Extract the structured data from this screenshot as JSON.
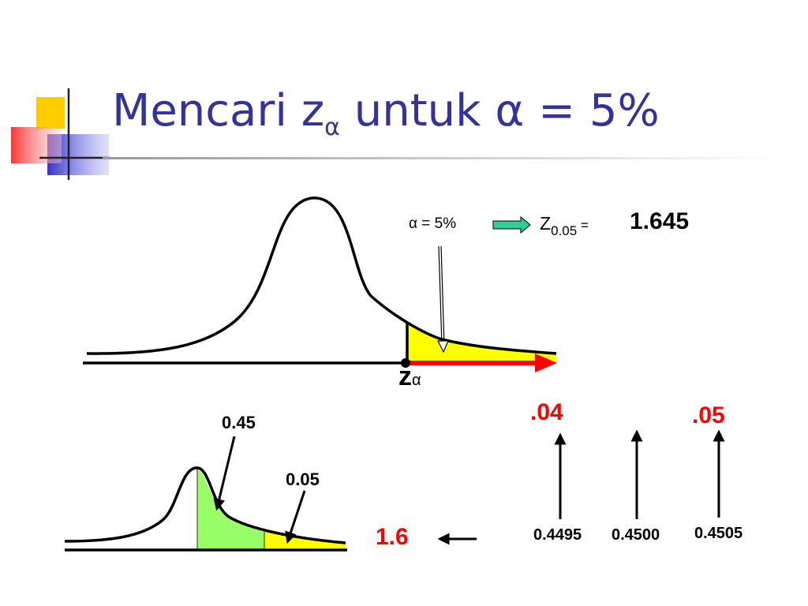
{
  "title": {
    "prefix": "Mencari z",
    "subscript": "α",
    "suffix": " untuk α = 5%"
  },
  "top_diagram": {
    "alpha_label": "α = 5%",
    "z_prefix": "Z",
    "z_subscript": "0.05",
    "z_equals": " =",
    "z_value": "1.645",
    "axis_label_main": "z",
    "axis_label_sub": "α"
  },
  "bottom_diagram": {
    "area_center_label": "0.45",
    "area_tail_label": "0.05"
  },
  "table_lookup": {
    "row_value": "1.6",
    "columns": [
      {
        "header": ".04",
        "probability": "0.4495"
      },
      {
        "header": "",
        "probability": "0.4500"
      },
      {
        "header": ".05",
        "probability": "0.4505"
      }
    ]
  },
  "colors": {
    "title": "#333399",
    "tail_fill": "#ffff00",
    "center_fill": "#99ff66",
    "highlight": "#ff0000",
    "arrow_fill": "#33cc99"
  }
}
